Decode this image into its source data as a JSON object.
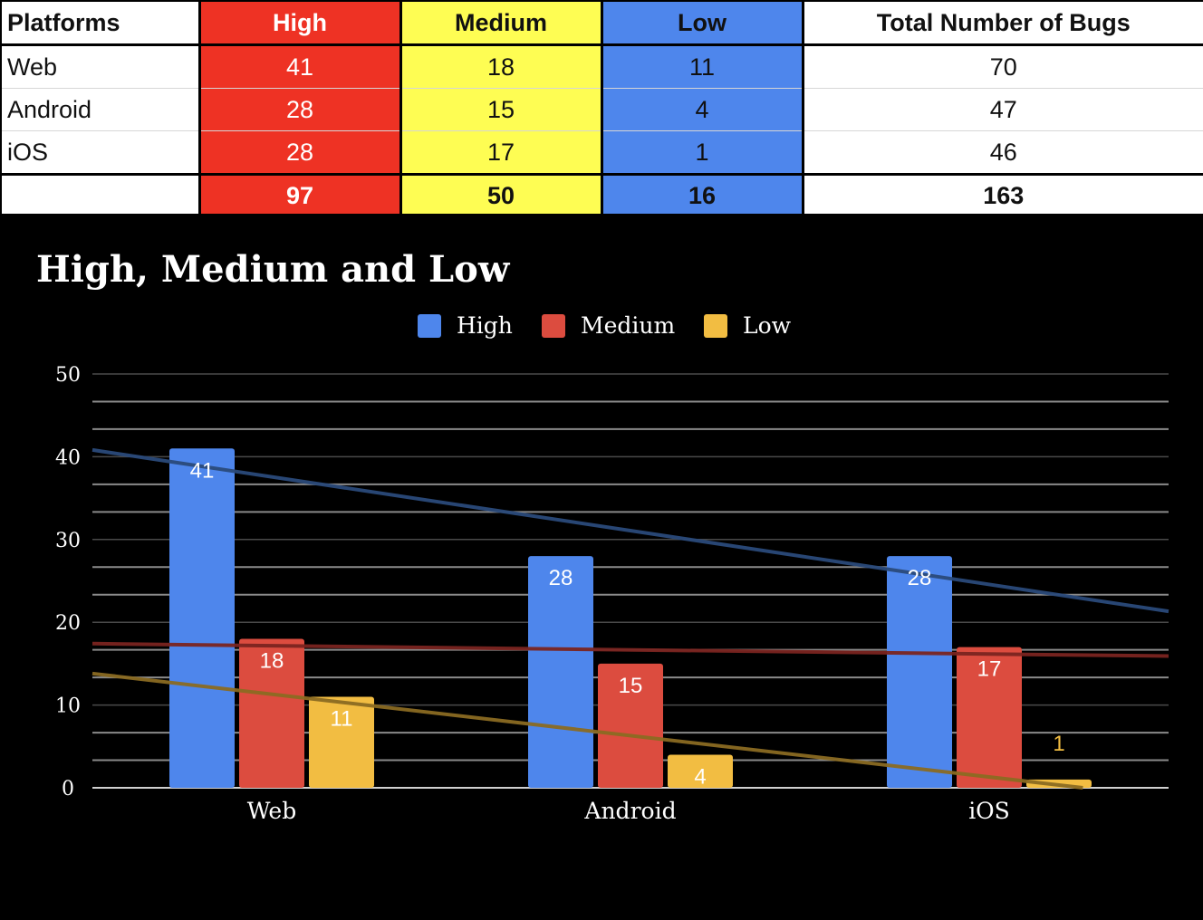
{
  "colors": {
    "table_high": "#ee3224",
    "table_medium": "#fefd53",
    "table_low": "#4e86ec",
    "chart_background": "#000000",
    "chart_high": "#4e86ec",
    "chart_medium": "#dc4c3f",
    "chart_low": "#f2bd42"
  },
  "table": {
    "headers": [
      "Platforms",
      "High",
      "Medium",
      "Low",
      "Total Number of Bugs"
    ],
    "rows": [
      [
        "Web",
        "41",
        "18",
        "11",
        "70"
      ],
      [
        "Android",
        "28",
        "15",
        "4",
        "47"
      ],
      [
        "iOS",
        "28",
        "17",
        "1",
        "46"
      ]
    ],
    "totals": [
      "",
      "97",
      "50",
      "16",
      "163"
    ]
  },
  "chart_data": {
    "type": "bar",
    "title": "High, Medium and Low",
    "xlabel": "",
    "ylabel": "",
    "categories": [
      "Web",
      "Android",
      "iOS"
    ],
    "series": [
      {
        "name": "High",
        "values": [
          41,
          28,
          28
        ],
        "color": "#4e86ec"
      },
      {
        "name": "Medium",
        "values": [
          18,
          15,
          17
        ],
        "color": "#dc4c3f"
      },
      {
        "name": "Low",
        "values": [
          11,
          4,
          1
        ],
        "color": "#f2bd42"
      }
    ],
    "ylim": [
      0,
      50
    ],
    "yticks": [
      "0",
      "10",
      "20",
      "30",
      "40",
      "50"
    ],
    "data_labels": true,
    "trendlines": "linear, one per series",
    "legend_position": "top",
    "grid": true,
    "gridline_step": 3.3333
  }
}
